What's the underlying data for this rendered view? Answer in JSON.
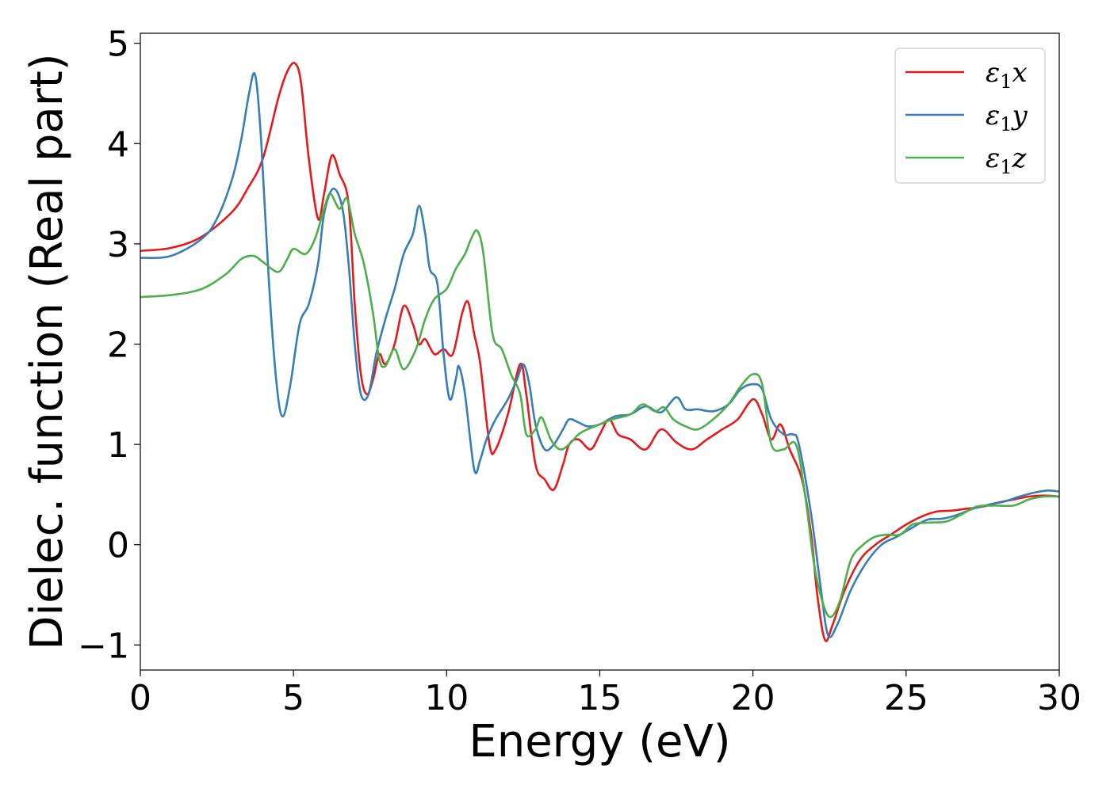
{
  "chart_data": {
    "type": "line",
    "xlabel": "Energy (eV)",
    "ylabel": "Dielec. function (Real part)",
    "xlim": [
      0,
      30
    ],
    "ylim": [
      -1.25,
      5.1
    ],
    "xticks": [
      0,
      5,
      10,
      15,
      20,
      25,
      30
    ],
    "yticks": [
      -1,
      0,
      1,
      2,
      3,
      4,
      5
    ],
    "xtick_labels": [
      "0",
      "5",
      "10",
      "15",
      "20",
      "25",
      "30"
    ],
    "ytick_labels": [
      "−1",
      "0",
      "1",
      "2",
      "3",
      "4",
      "5"
    ],
    "grid": false,
    "legend_position": "upper-right",
    "series": [
      {
        "name": "ε₁x",
        "legend_base": "ε",
        "legend_sub": "1",
        "legend_var": "x",
        "color": "#e41a1c",
        "points": [
          [
            0,
            2.93
          ],
          [
            1,
            2.96
          ],
          [
            2,
            3.07
          ],
          [
            3,
            3.32
          ],
          [
            3.5,
            3.55
          ],
          [
            4,
            3.85
          ],
          [
            4.5,
            4.45
          ],
          [
            4.8,
            4.72
          ],
          [
            5.05,
            4.8
          ],
          [
            5.25,
            4.6
          ],
          [
            5.5,
            3.85
          ],
          [
            5.8,
            3.25
          ],
          [
            6.0,
            3.5
          ],
          [
            6.25,
            3.88
          ],
          [
            6.5,
            3.7
          ],
          [
            6.8,
            3.4
          ],
          [
            7.0,
            2.4
          ],
          [
            7.2,
            1.7
          ],
          [
            7.4,
            1.5
          ],
          [
            7.6,
            1.65
          ],
          [
            7.8,
            1.9
          ],
          [
            8.0,
            1.8
          ],
          [
            8.3,
            2.0
          ],
          [
            8.6,
            2.38
          ],
          [
            8.9,
            2.2
          ],
          [
            9.1,
            2.0
          ],
          [
            9.3,
            2.05
          ],
          [
            9.6,
            1.9
          ],
          [
            9.9,
            1.95
          ],
          [
            10.2,
            1.9
          ],
          [
            10.5,
            2.3
          ],
          [
            10.7,
            2.42
          ],
          [
            10.9,
            2.1
          ],
          [
            11.1,
            1.8
          ],
          [
            11.4,
            1.0
          ],
          [
            11.6,
            0.95
          ],
          [
            12.0,
            1.3
          ],
          [
            12.4,
            1.8
          ],
          [
            12.6,
            1.5
          ],
          [
            12.9,
            0.8
          ],
          [
            13.2,
            0.65
          ],
          [
            13.5,
            0.55
          ],
          [
            13.8,
            0.8
          ],
          [
            14.0,
            1.0
          ],
          [
            14.3,
            1.05
          ],
          [
            14.7,
            0.95
          ],
          [
            15.0,
            1.1
          ],
          [
            15.3,
            1.25
          ],
          [
            15.6,
            1.1
          ],
          [
            16.0,
            1.05
          ],
          [
            16.5,
            0.95
          ],
          [
            17.0,
            1.15
          ],
          [
            17.5,
            1.02
          ],
          [
            18.0,
            0.95
          ],
          [
            18.5,
            1.05
          ],
          [
            19.0,
            1.15
          ],
          [
            19.5,
            1.25
          ],
          [
            20.0,
            1.45
          ],
          [
            20.3,
            1.3
          ],
          [
            20.6,
            1.05
          ],
          [
            20.9,
            1.2
          ],
          [
            21.2,
            0.95
          ],
          [
            21.6,
            0.65
          ],
          [
            21.9,
            0.1
          ],
          [
            22.1,
            -0.5
          ],
          [
            22.35,
            -0.95
          ],
          [
            22.6,
            -0.8
          ],
          [
            23.0,
            -0.45
          ],
          [
            23.5,
            -0.15
          ],
          [
            24.0,
            0.0
          ],
          [
            24.5,
            0.1
          ],
          [
            25.0,
            0.2
          ],
          [
            25.5,
            0.28
          ],
          [
            26.0,
            0.33
          ],
          [
            26.5,
            0.34
          ],
          [
            27.0,
            0.36
          ],
          [
            27.5,
            0.38
          ],
          [
            28.0,
            0.42
          ],
          [
            28.5,
            0.45
          ],
          [
            29.0,
            0.48
          ],
          [
            29.5,
            0.49
          ],
          [
            30.0,
            0.48
          ]
        ]
      },
      {
        "name": "ε₁y",
        "legend_base": "ε",
        "legend_sub": "1",
        "legend_var": "y",
        "color": "#377eb8",
        "points": [
          [
            0,
            2.86
          ],
          [
            1,
            2.88
          ],
          [
            2,
            3.05
          ],
          [
            2.5,
            3.25
          ],
          [
            3.0,
            3.65
          ],
          [
            3.3,
            4.05
          ],
          [
            3.55,
            4.5
          ],
          [
            3.75,
            4.68
          ],
          [
            3.95,
            4.0
          ],
          [
            4.2,
            2.6
          ],
          [
            4.45,
            1.6
          ],
          [
            4.65,
            1.28
          ],
          [
            4.9,
            1.6
          ],
          [
            5.2,
            2.2
          ],
          [
            5.5,
            2.4
          ],
          [
            5.8,
            2.8
          ],
          [
            6.0,
            3.3
          ],
          [
            6.3,
            3.55
          ],
          [
            6.6,
            3.35
          ],
          [
            6.8,
            2.8
          ],
          [
            7.0,
            2.0
          ],
          [
            7.2,
            1.5
          ],
          [
            7.45,
            1.5
          ],
          [
            7.7,
            1.9
          ],
          [
            8.0,
            2.25
          ],
          [
            8.3,
            2.55
          ],
          [
            8.6,
            2.9
          ],
          [
            8.9,
            3.1
          ],
          [
            9.1,
            3.38
          ],
          [
            9.3,
            3.1
          ],
          [
            9.45,
            2.75
          ],
          [
            9.7,
            2.6
          ],
          [
            9.9,
            1.9
          ],
          [
            10.1,
            1.45
          ],
          [
            10.3,
            1.65
          ],
          [
            10.4,
            1.78
          ],
          [
            10.6,
            1.5
          ],
          [
            10.9,
            0.75
          ],
          [
            11.1,
            0.85
          ],
          [
            11.3,
            1.05
          ],
          [
            11.6,
            1.25
          ],
          [
            12.0,
            1.45
          ],
          [
            12.3,
            1.65
          ],
          [
            12.5,
            1.8
          ],
          [
            12.7,
            1.6
          ],
          [
            12.9,
            1.2
          ],
          [
            13.2,
            0.95
          ],
          [
            13.5,
            1.0
          ],
          [
            13.8,
            1.15
          ],
          [
            14.0,
            1.25
          ],
          [
            14.3,
            1.22
          ],
          [
            14.6,
            1.18
          ],
          [
            15.0,
            1.2
          ],
          [
            15.5,
            1.28
          ],
          [
            16.0,
            1.3
          ],
          [
            16.5,
            1.38
          ],
          [
            17.0,
            1.32
          ],
          [
            17.5,
            1.47
          ],
          [
            17.8,
            1.35
          ],
          [
            18.2,
            1.35
          ],
          [
            18.7,
            1.33
          ],
          [
            19.2,
            1.4
          ],
          [
            19.6,
            1.55
          ],
          [
            20.0,
            1.6
          ],
          [
            20.3,
            1.55
          ],
          [
            20.6,
            1.25
          ],
          [
            21.0,
            1.1
          ],
          [
            21.3,
            1.1
          ],
          [
            21.5,
            1.0
          ],
          [
            21.9,
            0.3
          ],
          [
            22.2,
            -0.4
          ],
          [
            22.45,
            -0.9
          ],
          [
            22.75,
            -0.8
          ],
          [
            23.2,
            -0.45
          ],
          [
            23.7,
            -0.18
          ],
          [
            24.2,
            0.0
          ],
          [
            24.7,
            0.08
          ],
          [
            25.2,
            0.17
          ],
          [
            25.7,
            0.25
          ],
          [
            26.2,
            0.26
          ],
          [
            26.7,
            0.3
          ],
          [
            27.2,
            0.36
          ],
          [
            27.7,
            0.4
          ],
          [
            28.2,
            0.43
          ],
          [
            28.7,
            0.48
          ],
          [
            29.2,
            0.52
          ],
          [
            29.6,
            0.54
          ],
          [
            30.0,
            0.53
          ]
        ]
      },
      {
        "name": "ε₁z",
        "legend_base": "ε",
        "legend_sub": "1",
        "legend_var": "z",
        "color": "#4daf4a",
        "points": [
          [
            0,
            2.47
          ],
          [
            1,
            2.49
          ],
          [
            2,
            2.55
          ],
          [
            2.8,
            2.7
          ],
          [
            3.3,
            2.85
          ],
          [
            3.7,
            2.88
          ],
          [
            4.0,
            2.82
          ],
          [
            4.5,
            2.72
          ],
          [
            4.8,
            2.85
          ],
          [
            5.0,
            2.95
          ],
          [
            5.4,
            2.9
          ],
          [
            5.7,
            3.05
          ],
          [
            6.0,
            3.35
          ],
          [
            6.2,
            3.5
          ],
          [
            6.5,
            3.35
          ],
          [
            6.75,
            3.45
          ],
          [
            7.0,
            3.1
          ],
          [
            7.3,
            2.8
          ],
          [
            7.6,
            2.3
          ],
          [
            7.8,
            1.85
          ],
          [
            8.0,
            1.78
          ],
          [
            8.3,
            1.95
          ],
          [
            8.6,
            1.75
          ],
          [
            9.0,
            1.95
          ],
          [
            9.3,
            2.25
          ],
          [
            9.6,
            2.45
          ],
          [
            10.0,
            2.55
          ],
          [
            10.3,
            2.75
          ],
          [
            10.6,
            2.9
          ],
          [
            10.8,
            3.05
          ],
          [
            11.0,
            3.13
          ],
          [
            11.2,
            2.9
          ],
          [
            11.5,
            2.1
          ],
          [
            11.8,
            1.95
          ],
          [
            12.1,
            1.7
          ],
          [
            12.4,
            1.5
          ],
          [
            12.6,
            1.1
          ],
          [
            12.9,
            1.15
          ],
          [
            13.1,
            1.27
          ],
          [
            13.4,
            1.05
          ],
          [
            13.7,
            0.95
          ],
          [
            14.0,
            1.0
          ],
          [
            14.3,
            1.1
          ],
          [
            14.6,
            1.15
          ],
          [
            15.0,
            1.2
          ],
          [
            15.4,
            1.25
          ],
          [
            16.0,
            1.3
          ],
          [
            16.4,
            1.4
          ],
          [
            16.8,
            1.33
          ],
          [
            17.1,
            1.37
          ],
          [
            17.4,
            1.25
          ],
          [
            17.8,
            1.18
          ],
          [
            18.2,
            1.15
          ],
          [
            18.7,
            1.25
          ],
          [
            19.2,
            1.4
          ],
          [
            19.6,
            1.58
          ],
          [
            20.0,
            1.7
          ],
          [
            20.3,
            1.6
          ],
          [
            20.6,
            1.0
          ],
          [
            21.0,
            0.95
          ],
          [
            21.4,
            1.0
          ],
          [
            21.7,
            0.5
          ],
          [
            22.0,
            -0.2
          ],
          [
            22.3,
            -0.6
          ],
          [
            22.55,
            -0.72
          ],
          [
            22.85,
            -0.55
          ],
          [
            23.2,
            -0.15
          ],
          [
            23.6,
            0.0
          ],
          [
            24.0,
            0.08
          ],
          [
            24.4,
            0.1
          ],
          [
            24.8,
            0.1
          ],
          [
            25.2,
            0.2
          ],
          [
            25.7,
            0.22
          ],
          [
            26.3,
            0.23
          ],
          [
            26.8,
            0.3
          ],
          [
            27.3,
            0.38
          ],
          [
            27.8,
            0.39
          ],
          [
            28.5,
            0.39
          ],
          [
            29.0,
            0.45
          ],
          [
            29.5,
            0.48
          ],
          [
            30.0,
            0.48
          ]
        ]
      }
    ]
  }
}
